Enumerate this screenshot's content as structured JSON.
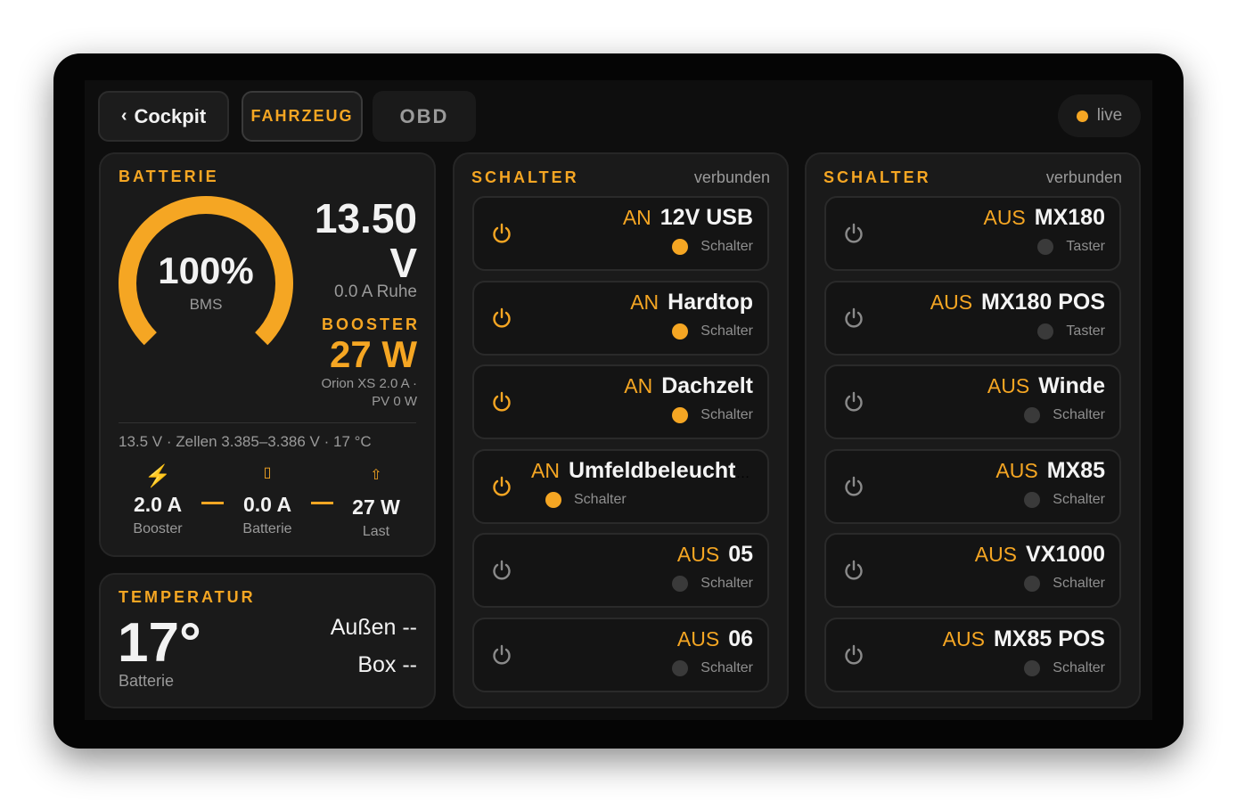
{
  "nav": {
    "back": "Cockpit",
    "tabs": [
      "FAHRZEUG",
      "OBD"
    ],
    "status": "live"
  },
  "battery": {
    "title": "BATTERIE",
    "percent": "100%",
    "percent_label": "BMS",
    "voltage": "13.50",
    "voltage_unit": "V",
    "current": "0.0 A Ruhe",
    "booster_title": "BOOSTER",
    "booster_power": "27 W",
    "booster_detail": "Orion XS 2.0 A · PV 0 W",
    "summary": "13.5 V · Zellen 3.385–3.386 V · 17 °C",
    "flows": [
      {
        "value": "2.0 A",
        "label": "Booster"
      },
      {
        "value": "0.0 A",
        "label": "Batterie"
      },
      {
        "value": "27 W",
        "label": "Last"
      }
    ]
  },
  "temperature": {
    "title": "TEMPERATUR",
    "value": "17°",
    "label": "Batterie",
    "outside": "Außen --",
    "box": "Box --"
  },
  "switch_panels": [
    {
      "title": "SCHALTER",
      "status": "verbunden",
      "switches": [
        {
          "state": "AN",
          "name": "12V USB",
          "type": "Schalter",
          "icon_color": "#f5a623",
          "dot_color": "#f5a623"
        },
        {
          "state": "AN",
          "name": "Hardtop",
          "type": "Schalter",
          "icon_color": "#f5a623",
          "dot_color": "#f5a623"
        },
        {
          "state": "AN",
          "name": "Dachzelt",
          "type": "Schalter",
          "icon_color": "#f5a623",
          "dot_color": "#f5a623"
        },
        {
          "state": "AN",
          "name": "Umfeldbeleuchtung",
          "type": "Schalter",
          "icon_color": "#f5a623",
          "dot_color": "#f5a623"
        },
        {
          "state": "AUS",
          "name": "05",
          "type": "Schalter",
          "icon_color": "#8a8a8a",
          "dot_color": "#3a3a3a"
        },
        {
          "state": "AUS",
          "name": "06",
          "type": "Schalter",
          "icon_color": "#8a8a8a",
          "dot_color": "#3a3a3a"
        }
      ]
    },
    {
      "title": "SCHALTER",
      "status": "verbunden",
      "switches": [
        {
          "state": "AUS",
          "name": "MX180",
          "type": "Taster",
          "icon_color": "#8a8a8a",
          "dot_color": "#3a3a3a"
        },
        {
          "state": "AUS",
          "name": "MX180 POS",
          "type": "Taster",
          "icon_color": "#8a8a8a",
          "dot_color": "#3a3a3a"
        },
        {
          "state": "AUS",
          "name": "Winde",
          "type": "Schalter",
          "icon_color": "#8a8a8a",
          "dot_color": "#3a3a3a"
        },
        {
          "state": "AUS",
          "name": "MX85",
          "type": "Schalter",
          "icon_color": "#8a8a8a",
          "dot_color": "#3a3a3a"
        },
        {
          "state": "AUS",
          "name": "VX1000",
          "type": "Schalter",
          "icon_color": "#8a8a8a",
          "dot_color": "#3a3a3a"
        },
        {
          "state": "AUS",
          "name": "MX85 POS",
          "type": "Schalter",
          "icon_color": "#8a8a8a",
          "dot_color": "#3a3a3a"
        }
      ]
    }
  ]
}
